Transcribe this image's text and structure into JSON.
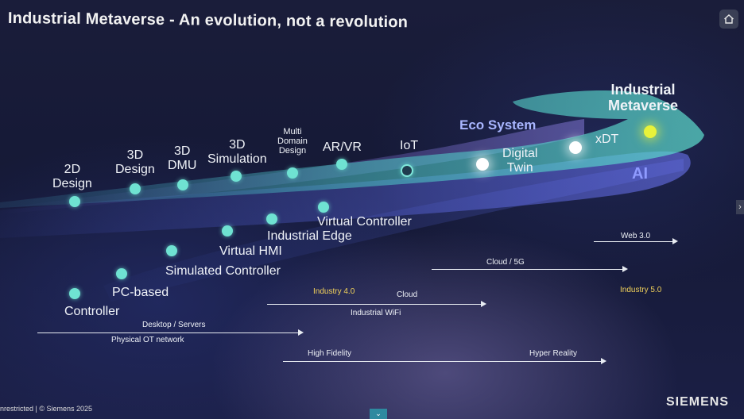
{
  "title": "Industrial Metaverse - An evolution, not a revolution",
  "bands": {
    "eco": "Eco System",
    "ai": "AI",
    "metaverse_line1": "Industrial",
    "metaverse_line2": "Metaverse"
  },
  "upper_milestones": {
    "design_2d": [
      "2D",
      "Design"
    ],
    "design_3d": [
      "3D",
      "Design"
    ],
    "dmu_3d": [
      "3D",
      "DMU"
    ],
    "simulation_3d": [
      "3D",
      "Simulation"
    ],
    "multi_domain": [
      "Multi",
      "Domain",
      "Design"
    ],
    "arvr": "AR/VR",
    "iot": "IoT",
    "digital_twin": [
      "Digital",
      "Twin"
    ],
    "xdt": "xDT"
  },
  "lower_milestones": {
    "controller": "Controller",
    "pc_based": "PC-based",
    "simulated_controller": "Simulated Controller",
    "virtual_hmi": "Virtual HMI",
    "industrial_edge": "Industrial Edge",
    "virtual_controller": "Virtual Controller"
  },
  "arrows": {
    "web30": "Web 3.0",
    "cloud5g": "Cloud / 5G",
    "industry40": "Industry 4.0",
    "cloud": "Cloud",
    "industry50": "Industry 5.0",
    "industrial_wifi": "Industrial WiFi",
    "desktop_servers": "Desktop / Servers",
    "physical_ot": "Physical OT network",
    "high_fidelity": "High Fidelity",
    "hyper_reality": "Hyper Reality"
  },
  "footer": "nrestricted | © Siemens 2025",
  "logo": "SIEMENS",
  "icons": {
    "home": "home-icon",
    "next": "chevron-right-icon",
    "down": "chevron-down-icon"
  },
  "colors": {
    "teal": "#6fe2d2",
    "eco_label": "#a9b6ff",
    "ai_label": "#8f9bff",
    "industry_highlight": "#f2d25a"
  }
}
